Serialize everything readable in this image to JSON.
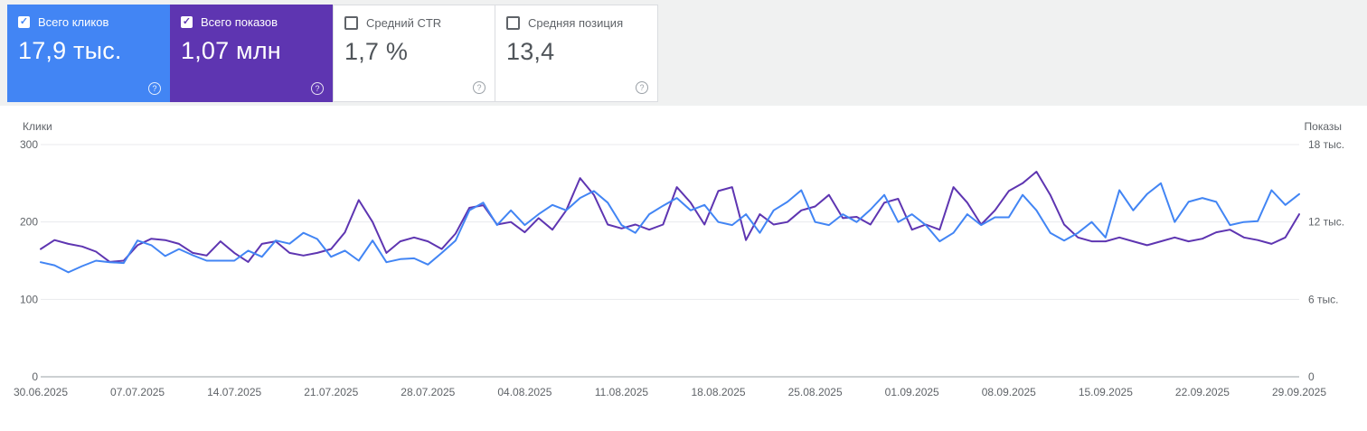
{
  "colors": {
    "background": "#f0f1f1",
    "panel": "#ffffff",
    "clicks_accent": "#4285f4",
    "impressions_accent": "#5e35b1",
    "grid": "#e8eaed",
    "baseline": "#9aa0a6",
    "axis_text": "#5f6368"
  },
  "cards": [
    {
      "id": "clicks",
      "label": "Всего кликов",
      "value": "17,9 тыс.",
      "selected": true,
      "color": "#4285f4",
      "help_icon": "?"
    },
    {
      "id": "impressions",
      "label": "Всего показов",
      "value": "1,07 млн",
      "selected": true,
      "color": "#5e35b1",
      "help_icon": "?"
    },
    {
      "id": "ctr",
      "label": "Средний CTR",
      "value": "1,7 %",
      "selected": false,
      "color": null,
      "help_icon": "?"
    },
    {
      "id": "position",
      "label": "Средняя позиция",
      "value": "13,4",
      "selected": false,
      "color": null,
      "help_icon": "?"
    }
  ],
  "chart_data": {
    "type": "line",
    "grid": "horizontal",
    "legend": "none",
    "n_points": 92,
    "points_per_tick": 7,
    "x_tick_labels": [
      "30.06.2025",
      "07.07.2025",
      "14.07.2025",
      "21.07.2025",
      "28.07.2025",
      "04.08.2025",
      "11.08.2025",
      "18.08.2025",
      "25.08.2025",
      "01.09.2025",
      "08.09.2025",
      "15.09.2025",
      "22.09.2025",
      "29.09.2025"
    ],
    "left_axis": {
      "title": "Клики",
      "max": 300,
      "ticks": [
        {
          "value": 0,
          "label": "0"
        },
        {
          "value": 100,
          "label": "100"
        },
        {
          "value": 200,
          "label": "200"
        },
        {
          "value": 300,
          "label": "300"
        }
      ]
    },
    "right_axis": {
      "title": "Показы",
      "max": 18,
      "ticks": [
        {
          "value": 0,
          "label": "0"
        },
        {
          "value": 6,
          "label": "6 тыс."
        },
        {
          "value": 12,
          "label": "12 тыс."
        },
        {
          "value": 18,
          "label": "18 тыс."
        }
      ]
    },
    "series": [
      {
        "name": "Клики",
        "axis": "left",
        "color": "#4285f4",
        "values": [
          148,
          144,
          135,
          143,
          150,
          148,
          147,
          176,
          170,
          156,
          165,
          157,
          150,
          150,
          150,
          163,
          155,
          176,
          172,
          186,
          178,
          155,
          163,
          150,
          176,
          148,
          152,
          153,
          145,
          160,
          176,
          215,
          225,
          196,
          215,
          196,
          210,
          222,
          215,
          231,
          240,
          225,
          196,
          186,
          210,
          221,
          231,
          215,
          222,
          200,
          196,
          210,
          186,
          215,
          226,
          241,
          200,
          196,
          210,
          200,
          216,
          235,
          200,
          210,
          196,
          175,
          186,
          210,
          196,
          206,
          206,
          235,
          215,
          186,
          176,
          186,
          200,
          180,
          241,
          215,
          236,
          250,
          200,
          226,
          231,
          226,
          196,
          200,
          201,
          241,
          222,
          236
        ]
      },
      {
        "name": "Показы",
        "axis": "right",
        "unit": "тыс.",
        "color": "#5e35b1",
        "values": [
          9.9,
          10.6,
          10.3,
          10.1,
          9.7,
          8.9,
          9.0,
          10.2,
          10.7,
          10.6,
          10.3,
          9.6,
          9.4,
          10.5,
          9.6,
          8.9,
          10.3,
          10.5,
          9.6,
          9.4,
          9.6,
          9.9,
          11.2,
          13.7,
          12.0,
          9.6,
          10.5,
          10.8,
          10.5,
          9.9,
          11.1,
          13.1,
          13.3,
          11.8,
          12.0,
          11.2,
          12.3,
          11.4,
          12.9,
          15.4,
          14.1,
          11.8,
          11.5,
          11.8,
          11.4,
          11.8,
          14.7,
          13.5,
          11.8,
          14.4,
          14.7,
          10.6,
          12.6,
          11.8,
          12.0,
          12.9,
          13.2,
          14.1,
          12.3,
          12.4,
          11.8,
          13.5,
          13.8,
          11.4,
          11.8,
          11.4,
          14.7,
          13.5,
          11.8,
          12.9,
          14.4,
          15.0,
          15.9,
          14.1,
          11.8,
          10.8,
          10.5,
          10.5,
          10.8,
          10.5,
          10.2,
          10.5,
          10.8,
          10.5,
          10.7,
          11.2,
          11.4,
          10.8,
          10.6,
          10.3,
          10.8,
          12.6
        ]
      }
    ]
  }
}
